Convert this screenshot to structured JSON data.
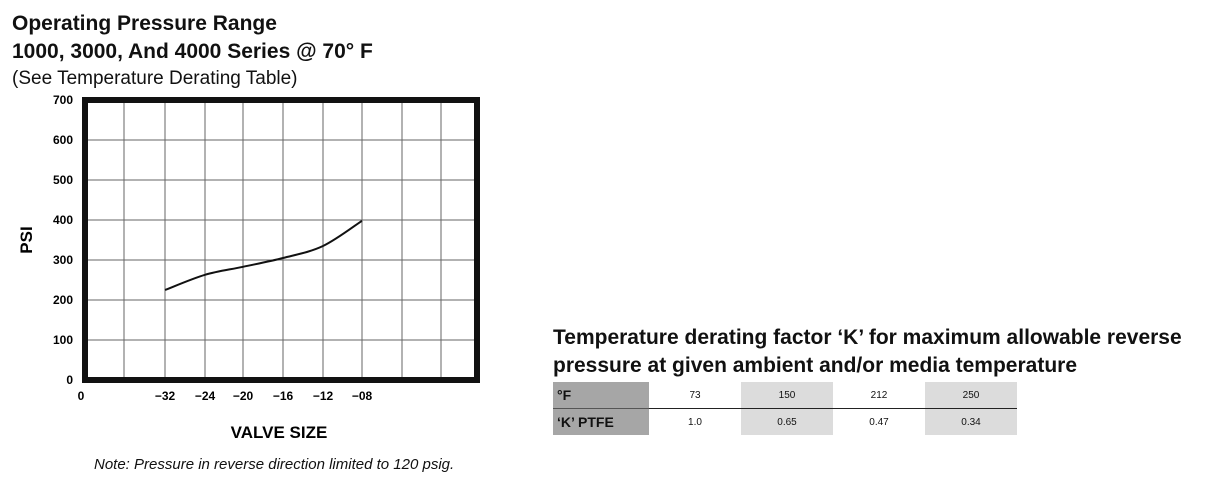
{
  "header": {
    "line1": "Operating Pressure Range",
    "line2": "1000, 3000, And 4000 Series @ 70° F",
    "line3": "(See Temperature Derating Table)"
  },
  "note": "Note: Pressure in reverse direction limited to 120 psig.",
  "chart_data": {
    "type": "line",
    "title": "Operating Pressure Range",
    "xlabel": "VALVE SIZE",
    "ylabel": "PSI",
    "x_ticks": [
      "0",
      "−32",
      "−24",
      "−20",
      "−16",
      "−12",
      "−08"
    ],
    "y_ticks": [
      "0",
      "100",
      "200",
      "300",
      "400",
      "500",
      "600",
      "700"
    ],
    "ylim": [
      0,
      700
    ],
    "grid": true,
    "series": [
      {
        "name": "",
        "x": [
          "−32",
          "−24",
          "−20",
          "−16",
          "−12",
          "−08"
        ],
        "values": [
          225,
          263,
          283,
          305,
          335,
          398
        ]
      }
    ]
  },
  "derating": {
    "title": "Temperature derating factor ‘K’ for maximum allowable reverse pressure at given ambient and/or media temperature",
    "rows": [
      {
        "label": "°F",
        "values": [
          "73",
          "150",
          "212",
          "250"
        ]
      },
      {
        "label": "‘K’ PTFE",
        "values": [
          "1.0",
          "0.65",
          "0.47",
          "0.34"
        ]
      }
    ]
  }
}
